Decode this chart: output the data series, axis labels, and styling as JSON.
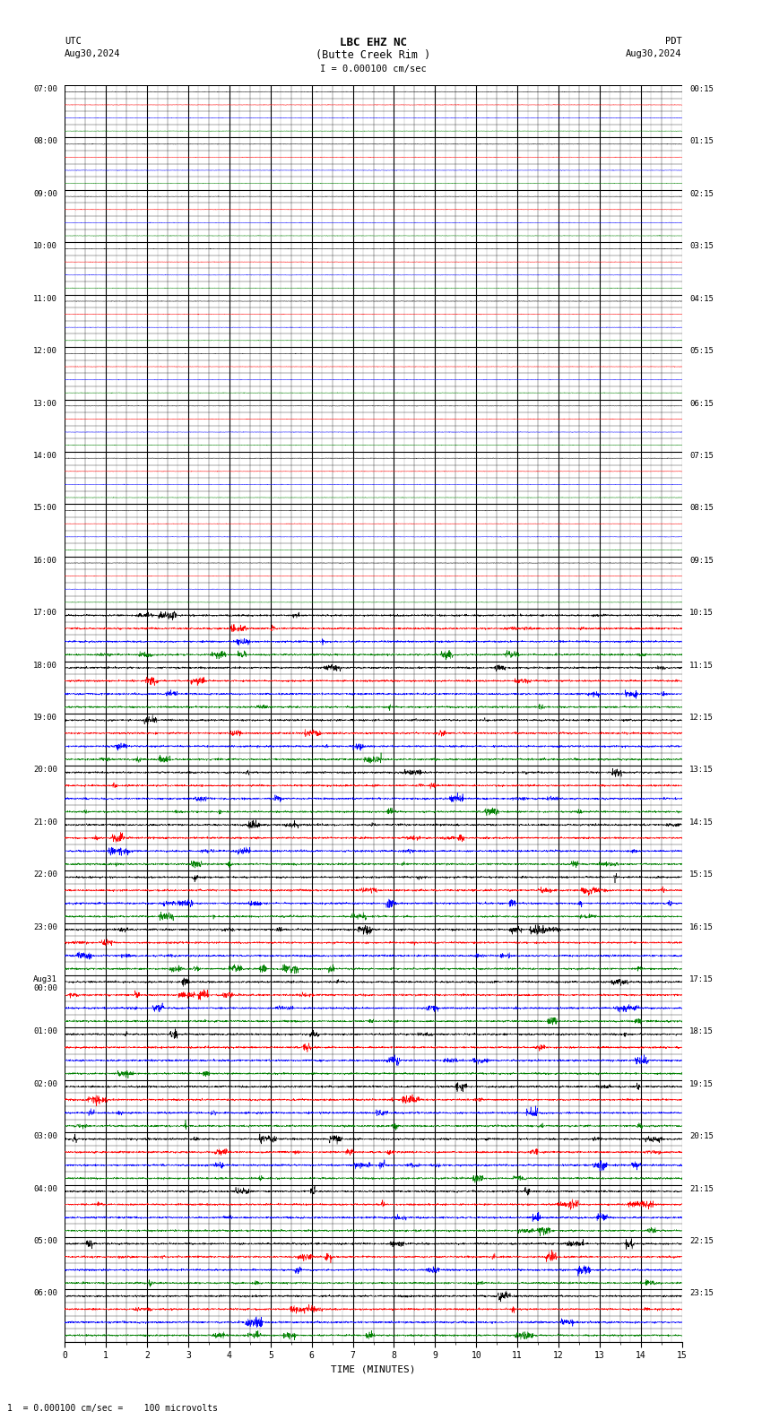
{
  "title_line1": "LBC EHZ NC",
  "title_line2": "(Butte Creek Rim )",
  "scale_label": "I = 0.000100 cm/sec",
  "utc_label": "UTC",
  "utc_date": "Aug30,2024",
  "pdt_label": "PDT",
  "pdt_date": "Aug30,2024",
  "xlabel": "TIME (MINUTES)",
  "bottom_note": "1  = 0.000100 cm/sec =    100 microvolts",
  "xmin": 0,
  "xmax": 15,
  "bg_color": "#ffffff",
  "trace_colors": [
    "#000000",
    "#ff0000",
    "#0000ff",
    "#008000"
  ],
  "rows": [
    {
      "utc": "07:00",
      "pdt": "00:15"
    },
    {
      "utc": "08:00",
      "pdt": "01:15"
    },
    {
      "utc": "09:00",
      "pdt": "02:15"
    },
    {
      "utc": "10:00",
      "pdt": "03:15"
    },
    {
      "utc": "11:00",
      "pdt": "04:15"
    },
    {
      "utc": "12:00",
      "pdt": "05:15"
    },
    {
      "utc": "13:00",
      "pdt": "06:15"
    },
    {
      "utc": "14:00",
      "pdt": "07:15"
    },
    {
      "utc": "15:00",
      "pdt": "08:15"
    },
    {
      "utc": "16:00",
      "pdt": "09:15"
    },
    {
      "utc": "17:00",
      "pdt": "10:15"
    },
    {
      "utc": "18:00",
      "pdt": "11:15"
    },
    {
      "utc": "19:00",
      "pdt": "12:15"
    },
    {
      "utc": "20:00",
      "pdt": "13:15"
    },
    {
      "utc": "21:00",
      "pdt": "14:15"
    },
    {
      "utc": "22:00",
      "pdt": "15:15"
    },
    {
      "utc": "23:00",
      "pdt": "16:15"
    },
    {
      "utc": "Aug31\n00:00",
      "pdt": "17:15"
    },
    {
      "utc": "01:00",
      "pdt": "18:15"
    },
    {
      "utc": "02:00",
      "pdt": "19:15"
    },
    {
      "utc": "03:00",
      "pdt": "20:15"
    },
    {
      "utc": "04:00",
      "pdt": "21:15"
    },
    {
      "utc": "05:00",
      "pdt": "22:15"
    },
    {
      "utc": "06:00",
      "pdt": "23:15"
    }
  ],
  "active_from_row": 10,
  "seed": 42,
  "n_pts": 2700,
  "minor_v_interval": 0.5,
  "sub_minor_v_interval": 0.25
}
